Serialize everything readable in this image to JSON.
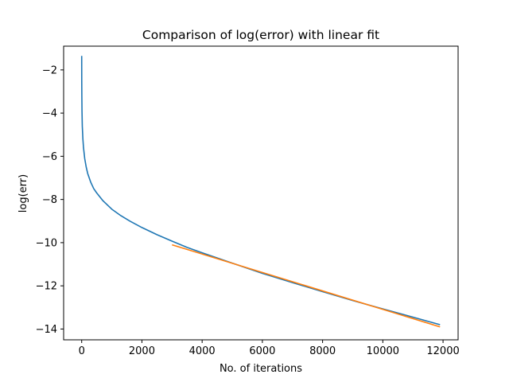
{
  "chart_data": {
    "type": "line",
    "title": "Comparison of log(error) with linear fit",
    "xlabel": "No. of iterations",
    "ylabel": "log(err)",
    "xlim": [
      -600,
      12500
    ],
    "ylim": [
      -14.5,
      -0.9
    ],
    "xticks": [
      0,
      2000,
      4000,
      6000,
      8000,
      10000,
      12000
    ],
    "xtick_labels": [
      "0",
      "2000",
      "4000",
      "6000",
      "8000",
      "10000",
      "12000"
    ],
    "yticks": [
      -2,
      -4,
      -6,
      -8,
      -10,
      -12,
      -14
    ],
    "ytick_labels": [
      "−2",
      "−4",
      "−6",
      "−8",
      "−10",
      "−12",
      "−14"
    ],
    "grid": false,
    "legend": false,
    "series": [
      {
        "color": "#1f77b4",
        "x": [
          0,
          2,
          5,
          10,
          20,
          40,
          60,
          100,
          150,
          200,
          300,
          400,
          500,
          700,
          1000,
          1300,
          1600,
          2000,
          2500,
          3000,
          3500,
          4000,
          5000,
          6000,
          7000,
          8000,
          9000,
          10000,
          11000,
          11900
        ],
        "y": [
          -1.35,
          -2.5,
          -3.2,
          -3.9,
          -4.6,
          -5.2,
          -5.6,
          -6.1,
          -6.5,
          -6.8,
          -7.2,
          -7.5,
          -7.7,
          -8.05,
          -8.45,
          -8.75,
          -9.0,
          -9.3,
          -9.63,
          -9.93,
          -10.22,
          -10.47,
          -10.95,
          -11.42,
          -11.85,
          -12.27,
          -12.68,
          -13.07,
          -13.45,
          -13.8
        ]
      },
      {
        "color": "#ff7f0e",
        "x": [
          3000,
          11900
        ],
        "y": [
          -10.1,
          -13.9
        ]
      }
    ]
  }
}
